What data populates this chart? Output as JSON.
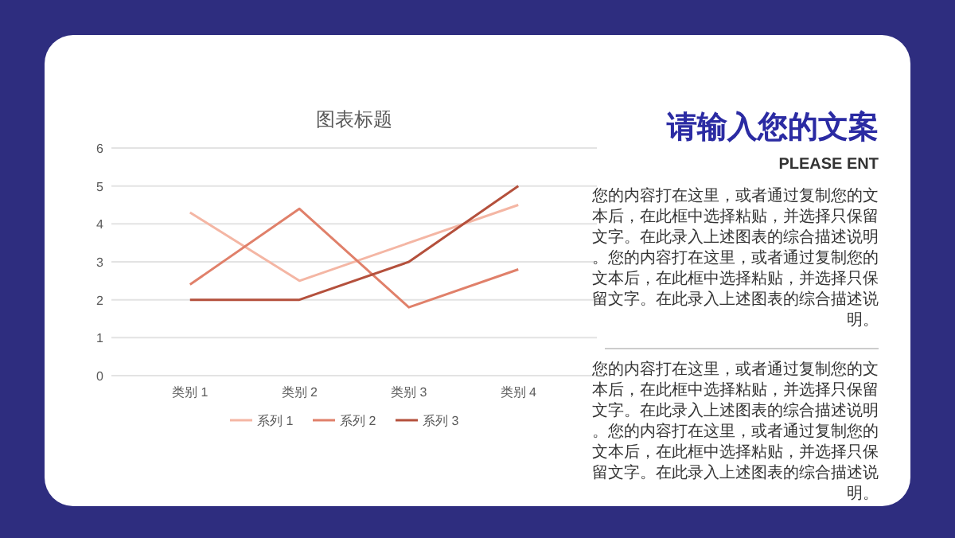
{
  "chart_data": {
    "type": "line",
    "title": "图表标题",
    "categories": [
      "类别 1",
      "类别 2",
      "类别 3",
      "类别 4"
    ],
    "series": [
      {
        "name": "系列 1",
        "color": "#f4b6a4",
        "values": [
          4.3,
          2.5,
          3.5,
          4.5
        ]
      },
      {
        "name": "系列 2",
        "color": "#e0806a",
        "values": [
          2.4,
          4.4,
          1.8,
          2.8
        ]
      },
      {
        "name": "系列 3",
        "color": "#b4503c",
        "values": [
          2,
          2,
          3,
          5
        ]
      }
    ],
    "ylim": [
      0,
      6
    ],
    "yticks": [
      0,
      1,
      2,
      3,
      4,
      5,
      6
    ],
    "grid": "y",
    "legend": "bottom",
    "marker": "none",
    "line_style": "solid",
    "annotations": [
      "请输入您的文案",
      "PLEASE ENT",
      "您的内容打在这里，或者通过复制您的文本后，在此框中选择粘贴，并选择只保留文字。在此录入上述图表的综合描述说明。您的内容打在这里，或者通过复制您的文本后，在此框中选择粘贴，并选择只保留文字。在此录入上述图表的综合描述说明。",
      "您的内容打在这里，或者通过复制您的文本后，在此框中选择粘贴，并选择只保留文字。在此录入上述图表的综合描述说明。您的内容打在这里，或者通过复制您的文本后，在此框中选择粘贴，并选择只保留文字。在此录入上述图表的综合描述说明。"
    ]
  }
}
